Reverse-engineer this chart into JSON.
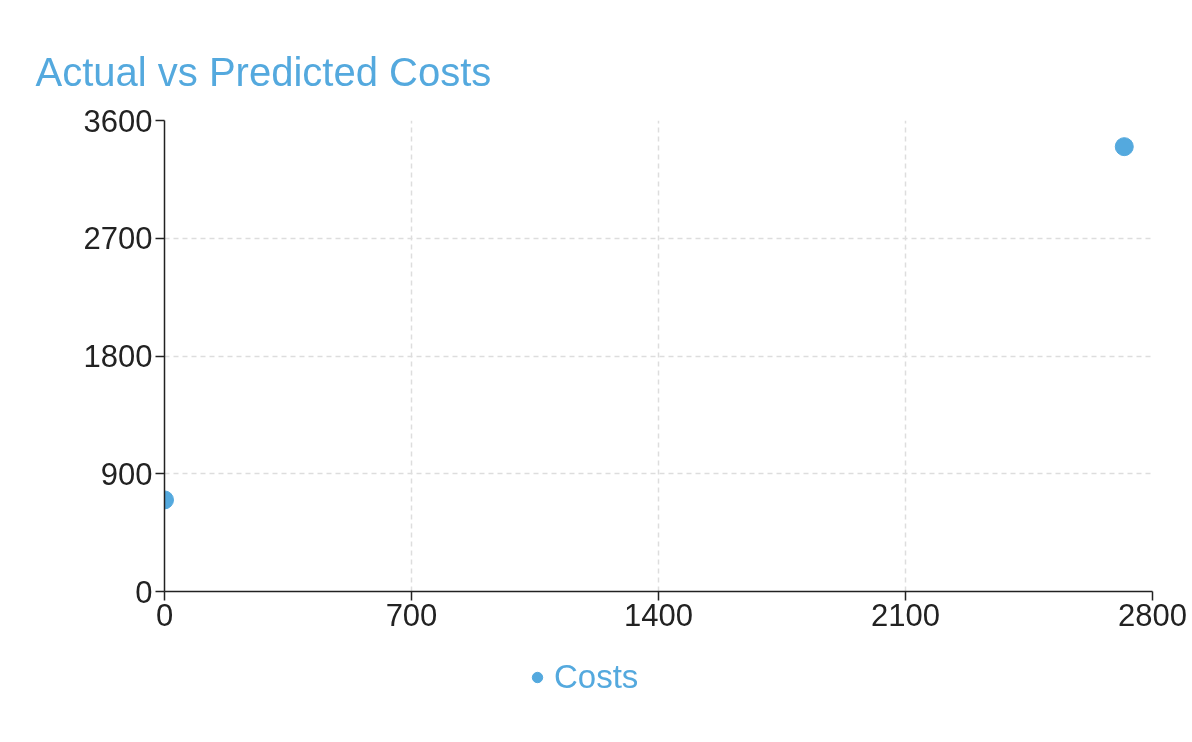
{
  "chart_data": {
    "type": "scatter",
    "title": "Actual vs Predicted Costs",
    "series": [
      {
        "name": "Costs",
        "color": "#54a9de",
        "x": [
          0,
          2720
        ],
        "values": [
          700,
          3400
        ]
      }
    ],
    "xlim": [
      0,
      2800
    ],
    "xticks": [
      0,
      700,
      1400,
      2100,
      2800
    ],
    "ylim": [
      0,
      3600
    ],
    "yticks": [
      0,
      900,
      1800,
      2700,
      3600
    ],
    "grid": true,
    "legend": "bottom",
    "marker": "circle"
  }
}
